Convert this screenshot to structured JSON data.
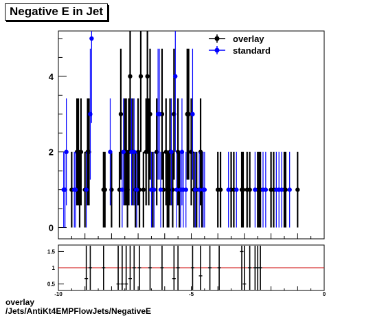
{
  "title": "Negative E in Jet",
  "footer": {
    "line1": "overlay",
    "line2": "/Jets/AntiKt4EMPFlowJets/NegativeE"
  },
  "legend": {
    "items": [
      {
        "label": "overlay",
        "color": "#000000"
      },
      {
        "label": "standard",
        "color": "#0000ff"
      }
    ]
  },
  "chart_data": [
    {
      "type": "scatter",
      "xlim": [
        -10,
        0
      ],
      "ylim": [
        -0.3,
        5.2
      ],
      "yticks": [
        0,
        2,
        4
      ],
      "series": [
        {
          "name": "overlay",
          "color": "#000000",
          "points": [
            [
              -9.5,
              1
            ],
            [
              -9.3,
              2
            ],
            [
              -9.25,
              2
            ],
            [
              -9.2,
              1
            ],
            [
              -9.15,
              2
            ],
            [
              -9.0,
              1
            ],
            [
              -8.9,
              2
            ],
            [
              -8.85,
              2
            ],
            [
              -8.3,
              1
            ],
            [
              -8.25,
              1
            ],
            [
              -8.0,
              1
            ],
            [
              -7.7,
              1
            ],
            [
              -7.65,
              3
            ],
            [
              -7.5,
              2
            ],
            [
              -7.45,
              2
            ],
            [
              -7.4,
              1
            ],
            [
              -7.35,
              2
            ],
            [
              -7.3,
              4
            ],
            [
              -7.2,
              2
            ],
            [
              -7.1,
              1
            ],
            [
              -7.0,
              2
            ],
            [
              -6.95,
              1
            ],
            [
              -6.9,
              4
            ],
            [
              -6.8,
              1
            ],
            [
              -6.7,
              2
            ],
            [
              -6.65,
              4
            ],
            [
              -6.6,
              2
            ],
            [
              -6.55,
              3
            ],
            [
              -6.45,
              1
            ],
            [
              -6.3,
              2
            ],
            [
              -6.1,
              3
            ],
            [
              -6.05,
              1
            ],
            [
              -5.95,
              2
            ],
            [
              -5.9,
              1
            ],
            [
              -5.85,
              1
            ],
            [
              -5.8,
              2
            ],
            [
              -5.7,
              1
            ],
            [
              -5.65,
              3
            ],
            [
              -5.5,
              2
            ],
            [
              -5.45,
              1
            ],
            [
              -5.15,
              3
            ],
            [
              -5.1,
              3
            ],
            [
              -5.0,
              2
            ],
            [
              -4.9,
              1
            ],
            [
              -4.8,
              1
            ],
            [
              -4.65,
              2
            ],
            [
              -4.6,
              1
            ],
            [
              -4.0,
              1
            ],
            [
              -3.9,
              1
            ],
            [
              -3.5,
              1
            ],
            [
              -3.4,
              1
            ],
            [
              -3.1,
              1
            ],
            [
              -3.05,
              1
            ],
            [
              -2.9,
              1
            ],
            [
              -2.8,
              1
            ],
            [
              -2.5,
              1
            ],
            [
              -2.45,
              1
            ],
            [
              -2.4,
              1
            ],
            [
              -2.0,
              1
            ],
            [
              -1.9,
              1
            ],
            [
              -1.5,
              1
            ],
            [
              -1.45,
              1
            ],
            [
              -1.0,
              1
            ]
          ]
        },
        {
          "name": "standard",
          "color": "#0000ff",
          "points": [
            [
              -9.8,
              1
            ],
            [
              -9.75,
              1
            ],
            [
              -9.7,
              2
            ],
            [
              -9.4,
              1
            ],
            [
              -9.35,
              1
            ],
            [
              -8.95,
              1
            ],
            [
              -8.8,
              3
            ],
            [
              -8.75,
              5
            ],
            [
              -8.05,
              2
            ],
            [
              -7.6,
              1
            ],
            [
              -7.55,
              2
            ],
            [
              -7.25,
              2
            ],
            [
              -7.15,
              2
            ],
            [
              -7.05,
              1
            ],
            [
              -6.5,
              1
            ],
            [
              -6.4,
              1
            ],
            [
              -6.25,
              3
            ],
            [
              -6.2,
              3
            ],
            [
              -6.15,
              1
            ],
            [
              -5.75,
              2
            ],
            [
              -5.6,
              4
            ],
            [
              -5.55,
              1
            ],
            [
              -5.4,
              1
            ],
            [
              -5.35,
              2
            ],
            [
              -5.3,
              1
            ],
            [
              -5.2,
              1
            ],
            [
              -4.95,
              3
            ],
            [
              -4.85,
              1
            ],
            [
              -4.7,
              1
            ],
            [
              -4.55,
              1
            ],
            [
              -4.5,
              1
            ],
            [
              -3.6,
              1
            ],
            [
              -3.3,
              1
            ],
            [
              -2.6,
              1
            ],
            [
              -2.3,
              1
            ],
            [
              -2.2,
              1
            ],
            [
              -1.8,
              1
            ],
            [
              -1.7,
              1
            ],
            [
              -1.6,
              1
            ],
            [
              -1.3,
              1
            ]
          ]
        }
      ]
    },
    {
      "type": "scatter",
      "name": "ratio",
      "xlim": [
        -10,
        0
      ],
      "ylim": [
        0.3,
        1.7
      ],
      "yticks": [
        0.5,
        1,
        1.5
      ],
      "xticks": [
        -10,
        -5,
        0
      ],
      "reference_line": 1,
      "points": [
        [
          -8.95,
          0.667
        ],
        [
          -8.8,
          1
        ],
        [
          -8.3,
          1
        ],
        [
          -7.75,
          0.5
        ],
        [
          -7.6,
          0.5
        ],
        [
          -7.45,
          0.5
        ],
        [
          -7.3,
          0.667
        ],
        [
          -7.15,
          1
        ],
        [
          -6.95,
          1
        ],
        [
          -6.55,
          1
        ],
        [
          -6.1,
          1
        ],
        [
          -5.65,
          0.667
        ],
        [
          -5.5,
          1
        ],
        [
          -4.95,
          1
        ],
        [
          -4.65,
          0.75
        ],
        [
          -4.3,
          1
        ],
        [
          -3.95,
          1
        ],
        [
          -3.1,
          1.5
        ],
        [
          -3.0,
          0.5
        ],
        [
          -2.8,
          1
        ],
        [
          -2.6,
          1
        ],
        [
          -2.5,
          1
        ],
        [
          -2.4,
          1
        ]
      ]
    }
  ]
}
